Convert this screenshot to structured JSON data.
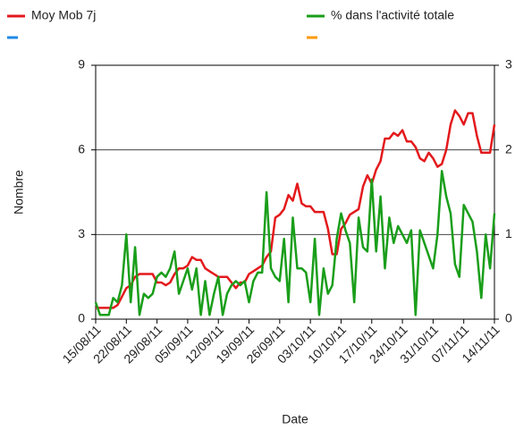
{
  "chart_data": {
    "type": "line",
    "x_label": "Date",
    "y_label": "Nombre",
    "categories": [
      "15/08/11",
      null,
      null,
      null,
      null,
      null,
      null,
      "22/08/11",
      null,
      null,
      null,
      null,
      null,
      null,
      "29/08/11",
      null,
      null,
      null,
      null,
      null,
      null,
      "05/09/11",
      null,
      null,
      null,
      null,
      null,
      null,
      "12/09/11",
      null,
      null,
      null,
      null,
      null,
      null,
      "19/09/11",
      null,
      null,
      null,
      null,
      null,
      null,
      "26/09/11",
      null,
      null,
      null,
      null,
      null,
      null,
      "03/10/11",
      null,
      null,
      null,
      null,
      null,
      null,
      "10/10/11",
      null,
      null,
      null,
      null,
      null,
      null,
      "17/10/11",
      null,
      null,
      null,
      null,
      null,
      null,
      "24/10/11",
      null,
      null,
      null,
      null,
      null,
      null,
      "31/10/11",
      null,
      null,
      null,
      null,
      null,
      null,
      "07/11/11",
      null,
      null,
      null,
      null,
      null,
      null,
      "14/11/11"
    ],
    "series": [
      {
        "name": "Moy Mob 7j",
        "color": "#e3191c",
        "axis": "y",
        "values": [
          0.4,
          0.4,
          0.4,
          0.4,
          0.4,
          0.5,
          0.8,
          1.1,
          1.2,
          1.5,
          1.6,
          1.6,
          1.6,
          1.6,
          1.3,
          1.3,
          1.2,
          1.3,
          1.6,
          1.8,
          1.8,
          1.9,
          2.2,
          2.1,
          2.1,
          1.8,
          1.7,
          1.6,
          1.5,
          1.5,
          1.5,
          1.3,
          1.1,
          1.3,
          1.3,
          1.6,
          1.7,
          1.8,
          1.9,
          2.2,
          2.4,
          3.6,
          3.7,
          3.9,
          4.4,
          4.2,
          4.8,
          4.1,
          4.0,
          4.0,
          3.8,
          3.8,
          3.8,
          3.2,
          2.3,
          2.3,
          3.2,
          3.4,
          3.7,
          3.8,
          3.9,
          4.7,
          5.1,
          4.8,
          5.3,
          5.6,
          6.4,
          6.4,
          6.6,
          6.5,
          6.7,
          6.3,
          6.3,
          6.1,
          5.7,
          5.6,
          5.9,
          5.7,
          5.4,
          5.5,
          6.0,
          6.9,
          7.4,
          7.2,
          6.9,
          7.3,
          7.3,
          6.5,
          5.9,
          5.9,
          5.9,
          6.9
        ]
      },
      {
        "name": "% dans l'activité totale",
        "color": "#1a9e1a",
        "axis": "y2",
        "values": [
          0.2,
          0.05,
          0.05,
          0.05,
          0.25,
          0.2,
          0.4,
          1.0,
          0.2,
          0.85,
          0.05,
          0.3,
          0.25,
          0.3,
          0.5,
          0.55,
          0.5,
          0.6,
          0.8,
          0.3,
          0.45,
          0.6,
          0.35,
          0.6,
          0.05,
          0.45,
          0.05,
          0.3,
          0.5,
          0.05,
          0.3,
          0.4,
          0.45,
          0.4,
          0.45,
          0.2,
          0.45,
          0.55,
          0.55,
          1.5,
          0.6,
          0.5,
          0.45,
          0.95,
          0.2,
          1.2,
          0.6,
          0.6,
          0.55,
          0.2,
          0.95,
          0.05,
          0.6,
          0.3,
          0.4,
          0.95,
          1.25,
          1.05,
          0.9,
          0.2,
          1.2,
          0.85,
          0.8,
          1.65,
          0.8,
          1.45,
          0.6,
          1.2,
          0.9,
          1.1,
          1.0,
          0.9,
          1.05,
          0.05,
          1.05,
          0.9,
          0.75,
          0.6,
          1.0,
          1.75,
          1.45,
          1.25,
          0.65,
          0.5,
          1.35,
          1.25,
          1.15,
          0.8,
          0.25,
          1.0,
          0.6,
          1.25
        ]
      }
    ],
    "legend_markers": [
      {
        "color": "#1e88e5"
      },
      {
        "color": "#ff9800"
      }
    ],
    "ylim": [
      0,
      9
    ],
    "yticks": [
      0,
      3,
      6,
      9
    ],
    "y2lim": [
      0,
      3
    ],
    "y2ticks": [
      0,
      1,
      2,
      3
    ],
    "grid": true,
    "legend": "top"
  }
}
